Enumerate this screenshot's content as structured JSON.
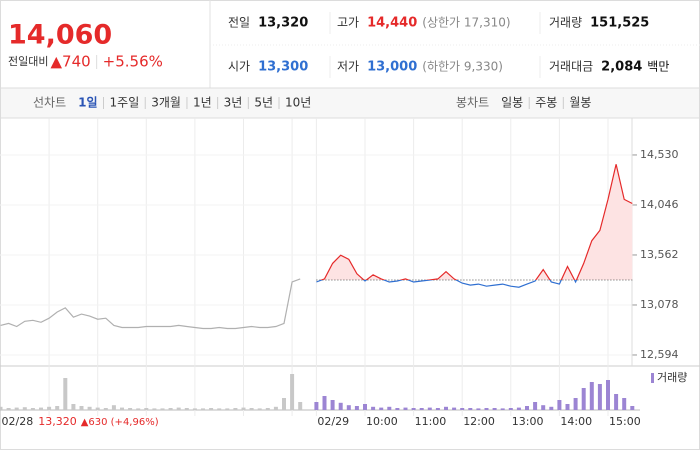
{
  "header": {
    "price": "14,060",
    "change_label": "전일대비",
    "change": "▲740",
    "change_pct": "+5.56%",
    "color": "#e52a2a"
  },
  "stats": [
    {
      "label": "전일",
      "value": "13,320"
    },
    {
      "label": "고가",
      "value": "14,440",
      "color": "#e52a2a",
      "extra": "(상한가 17,310)"
    },
    {
      "label": "거래량",
      "value": "151,525"
    },
    {
      "label": "시가",
      "value": "13,300",
      "color": "#2f6fd1"
    },
    {
      "label": "저가",
      "value": "13,000",
      "color": "#2f6fd1",
      "extra": "(하한가 9,330)"
    },
    {
      "label": "거래대금",
      "value": "2,084",
      "unit": "백만"
    }
  ],
  "tabs": {
    "line_label": "선차트",
    "periods": [
      "1일",
      "1주일",
      "3개월",
      "1년",
      "3년",
      "5년",
      "10년"
    ],
    "active": 0,
    "candle_label": "봉차트",
    "candle_periods": [
      "일봉",
      "주봉",
      "월봉"
    ]
  },
  "prev_session": {
    "close": "13,320",
    "change": "▲630 (+4,96%)",
    "color": "#e52a2a"
  },
  "chart_data": {
    "type": "line",
    "categories": [
      "02/28",
      null,
      null,
      null,
      null,
      null,
      null,
      null,
      null,
      null,
      null,
      null,
      null,
      null,
      null,
      null,
      null,
      null,
      null,
      null,
      null,
      null,
      null,
      null,
      null,
      null,
      null,
      null,
      null,
      null,
      null,
      null,
      null,
      null,
      null,
      null,
      null,
      null,
      null,
      "02/29",
      null,
      null,
      null,
      null,
      null,
      "10:00",
      null,
      null,
      null,
      null,
      null,
      "11:00",
      null,
      null,
      null,
      null,
      null,
      "12:00",
      null,
      null,
      null,
      null,
      null,
      "13:00",
      null,
      null,
      null,
      null,
      null,
      "14:00",
      null,
      null,
      null,
      null,
      null,
      "15:00",
      null,
      null,
      null
    ],
    "values": [
      12880,
      12900,
      12870,
      12920,
      12930,
      12910,
      12950,
      13010,
      13050,
      12960,
      12990,
      12970,
      12940,
      12950,
      12880,
      12860,
      12860,
      12860,
      12870,
      12870,
      12870,
      12870,
      12880,
      12870,
      12860,
      12850,
      12850,
      12860,
      12850,
      12850,
      12860,
      12870,
      12860,
      12860,
      12870,
      12900,
      13300,
      13330,
      null,
      13300,
      13330,
      13480,
      13560,
      13520,
      13380,
      13310,
      13370,
      13330,
      13300,
      13310,
      13330,
      13300,
      13310,
      13320,
      13330,
      13400,
      13330,
      13290,
      13270,
      13280,
      13260,
      13270,
      13280,
      13260,
      13250,
      13280,
      13310,
      13420,
      13300,
      13280,
      13450,
      13300,
      13480,
      13700,
      13800,
      14100,
      14440,
      14100,
      14060
    ],
    "prev_close": 13320,
    "up_color": "#e52a2a",
    "down_color": "#2f6fd1",
    "prev_color": "#b0b0b0",
    "fill_color": "#fde3e3",
    "ylim": [
      12497,
      14791
    ],
    "yticks": [
      {
        "value": 14530,
        "label": "14,530"
      },
      {
        "value": 14046,
        "label": "14,046"
      },
      {
        "value": 13562,
        "label": "13,562"
      },
      {
        "value": 13078,
        "label": "13,078"
      },
      {
        "value": 12594,
        "label": "12,594"
      }
    ],
    "volume": {
      "name": "거래량",
      "color": "#9c85d3",
      "prev_color": "#c8c8c8",
      "ylim": [
        0,
        100
      ],
      "values": [
        8,
        5,
        6,
        7,
        5,
        6,
        8,
        10,
        80,
        15,
        10,
        8,
        6,
        5,
        12,
        6,
        5,
        4,
        5,
        4,
        4,
        5,
        6,
        5,
        4,
        4,
        5,
        4,
        4,
        5,
        6,
        5,
        4,
        5,
        8,
        30,
        90,
        20,
        null,
        20,
        35,
        25,
        18,
        12,
        10,
        15,
        8,
        6,
        8,
        5,
        6,
        5,
        5,
        6,
        5,
        8,
        6,
        5,
        5,
        4,
        5,
        5,
        4,
        5,
        6,
        10,
        20,
        12,
        8,
        25,
        15,
        30,
        55,
        70,
        65,
        75,
        40,
        30,
        10
      ]
    }
  }
}
